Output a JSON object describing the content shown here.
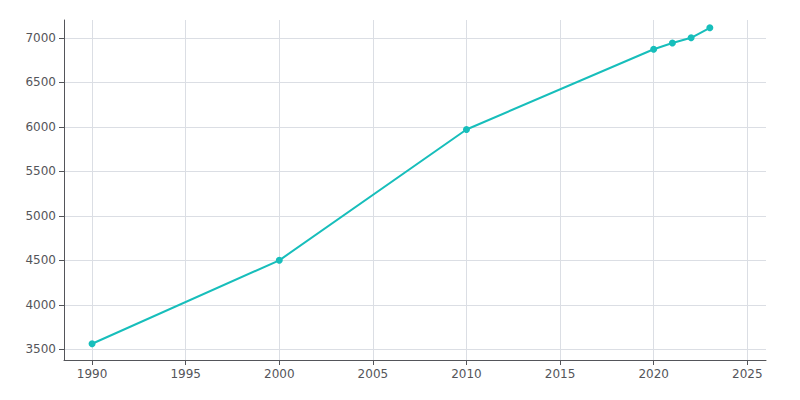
{
  "chart_data": {
    "type": "line",
    "x": [
      1990,
      2000,
      2010,
      2020,
      2021,
      2022,
      2023
    ],
    "values": [
      3563,
      4500,
      5970,
      6871,
      6942,
      7000,
      7112
    ],
    "color": "#17bebb",
    "marker": "circle",
    "xlim": [
      1988.5,
      2026
    ],
    "ylim": [
      3380,
      7200
    ],
    "xticks": [
      1990,
      1995,
      2000,
      2005,
      2010,
      2015,
      2020,
      2025
    ],
    "yticks": [
      3500,
      4000,
      4500,
      5000,
      5500,
      6000,
      6500,
      7000
    ],
    "grid": true
  }
}
